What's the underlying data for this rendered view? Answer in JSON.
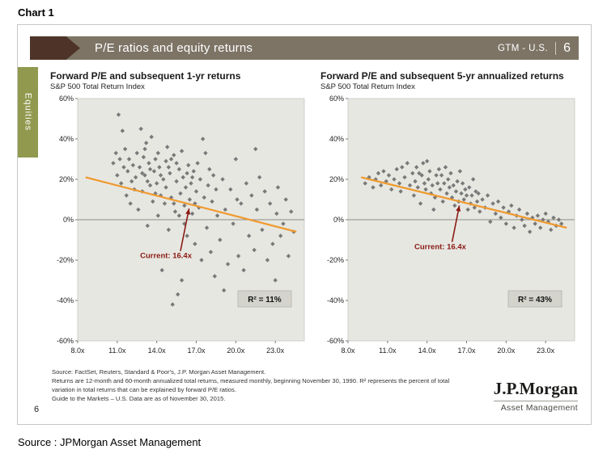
{
  "page": {
    "chart_label": "Chart 1",
    "bottom_source": "Source : JPMorgan Asset Management"
  },
  "slide": {
    "header": {
      "title": "P/E ratios and equity returns",
      "gtm_label": "GTM - U.S.",
      "page_number": "6"
    },
    "section_tab": "Equities",
    "footer": {
      "source_lines": [
        "Source: FactSet, Reuters, Standard & Poor's, J.P. Morgan Asset Management.",
        "Returns are 12-month and 60-month annualized total returns, measured monthly, beginning November 30, 1990. R² represents the percent of total",
        "variation in total returns that can be explained by forward P/E ratios.",
        "Guide to the Markets – U.S. Data are as of November 30, 2015."
      ],
      "page_number": "6",
      "logo_primary": "J.P.Morgan",
      "logo_secondary": "Asset Management"
    }
  },
  "colors": {
    "header_bar": "#7d7466",
    "header_arrow": "#4e3428",
    "tab_green": "#90994e",
    "plot_bg": "#e7e7e2",
    "plot_border": "#c8c8c2",
    "point_gray": "#707070",
    "trend_orange": "#ef9a2f",
    "current_red": "#8a1a12",
    "r2_bg": "#d4d4cd"
  },
  "chart_data": [
    {
      "type": "scatter",
      "title": "Forward P/E and subsequent 1-yr returns",
      "subtitle": "S&P 500 Total Return Index",
      "marker": "diamond",
      "xlim": [
        8,
        25.2
      ],
      "ylim": [
        -60,
        60
      ],
      "xtick_values": [
        8,
        11,
        14,
        17,
        20,
        23
      ],
      "xtick_labels": [
        "8.0x",
        "11.0x",
        "14.0x",
        "17.0x",
        "20.0x",
        "23.0x"
      ],
      "ytick_values": [
        60,
        40,
        20,
        0,
        -20,
        -40,
        -60
      ],
      "ytick_labels": [
        "60%",
        "40%",
        "20%",
        "0%",
        "-20%",
        "-40%",
        "-60%"
      ],
      "r_squared_label": "R² = 11%",
      "trendline": {
        "x1": 8.6,
        "y1": 21,
        "x2": 24.6,
        "y2": -6
      },
      "current": {
        "label": "Current: 16.4x",
        "text_x": 14.7,
        "text_y": -19,
        "arrow_from": [
          15.8,
          -15.5
        ],
        "arrow_to": [
          16.45,
          5.5
        ]
      },
      "points": [
        [
          10.7,
          28
        ],
        [
          10.9,
          33
        ],
        [
          11.0,
          22
        ],
        [
          11.1,
          52
        ],
        [
          11.2,
          30
        ],
        [
          11.3,
          18
        ],
        [
          11.4,
          44
        ],
        [
          11.5,
          26
        ],
        [
          11.6,
          35
        ],
        [
          11.7,
          12
        ],
        [
          11.8,
          24
        ],
        [
          11.9,
          30
        ],
        [
          12.0,
          8
        ],
        [
          12.1,
          19
        ],
        [
          12.2,
          27
        ],
        [
          12.3,
          15
        ],
        [
          12.4,
          21
        ],
        [
          12.5,
          33
        ],
        [
          12.6,
          5
        ],
        [
          12.7,
          26
        ],
        [
          12.8,
          45
        ],
        [
          12.9,
          14
        ],
        [
          13.0,
          31
        ],
        [
          13.1,
          22
        ],
        [
          13.2,
          38
        ],
        [
          13.3,
          -3
        ],
        [
          13.4,
          28
        ],
        [
          13.5,
          17
        ],
        [
          13.6,
          41
        ],
        [
          13.7,
          9
        ],
        [
          13.8,
          24
        ],
        [
          13.9,
          30
        ],
        [
          14.0,
          18
        ],
        [
          14.1,
          2
        ],
        [
          14.2,
          26
        ],
        [
          14.3,
          12
        ],
        [
          14.4,
          -25
        ],
        [
          14.5,
          20
        ],
        [
          14.6,
          8
        ],
        [
          14.7,
          29
        ],
        [
          14.8,
          36
        ],
        [
          14.9,
          -5
        ],
        [
          15.0,
          23
        ],
        [
          15.1,
          11
        ],
        [
          15.2,
          -42
        ],
        [
          15.3,
          32
        ],
        [
          15.4,
          4
        ],
        [
          15.5,
          19
        ],
        [
          15.6,
          -37
        ],
        [
          15.7,
          25
        ],
        [
          15.8,
          13
        ],
        [
          15.9,
          -30
        ],
        [
          16.0,
          21
        ],
        [
          16.1,
          7
        ],
        [
          16.2,
          16
        ],
        [
          16.3,
          -8
        ],
        [
          16.4,
          27
        ],
        [
          16.5,
          10
        ],
        [
          16.6,
          18
        ],
        [
          16.7,
          3
        ],
        [
          16.8,
          24
        ],
        [
          16.9,
          -12
        ],
        [
          17.0,
          14
        ],
        [
          17.1,
          28
        ],
        [
          17.2,
          6
        ],
        [
          17.3,
          20
        ],
        [
          17.4,
          -20
        ],
        [
          17.5,
          40
        ],
        [
          17.6,
          11
        ],
        [
          17.7,
          33
        ],
        [
          17.8,
          -4
        ],
        [
          17.9,
          17
        ],
        [
          18.0,
          25
        ],
        [
          18.1,
          -16
        ],
        [
          18.2,
          9
        ],
        [
          18.3,
          22
        ],
        [
          18.4,
          -28
        ],
        [
          18.5,
          15
        ],
        [
          18.6,
          2
        ],
        [
          18.8,
          -10
        ],
        [
          19.0,
          20
        ],
        [
          19.1,
          -35
        ],
        [
          19.2,
          5
        ],
        [
          19.4,
          -22
        ],
        [
          19.6,
          15
        ],
        [
          19.8,
          -2
        ],
        [
          20.0,
          30
        ],
        [
          20.1,
          10
        ],
        [
          20.2,
          -18
        ],
        [
          20.4,
          8
        ],
        [
          20.6,
          -25
        ],
        [
          20.8,
          18
        ],
        [
          21.0,
          -8
        ],
        [
          21.2,
          12
        ],
        [
          21.4,
          -15
        ],
        [
          21.5,
          35
        ],
        [
          21.6,
          5
        ],
        [
          21.8,
          21
        ],
        [
          22.0,
          -5
        ],
        [
          22.2,
          14
        ],
        [
          22.4,
          -20
        ],
        [
          22.6,
          8
        ],
        [
          22.8,
          -12
        ],
        [
          23.0,
          -30
        ],
        [
          23.1,
          3
        ],
        [
          23.2,
          16
        ],
        [
          23.4,
          -8
        ],
        [
          23.6,
          -2
        ],
        [
          23.8,
          10
        ],
        [
          24.0,
          -18
        ],
        [
          24.2,
          4
        ],
        [
          24.4,
          -6
        ],
        [
          13.1,
          35
        ],
        [
          13.5,
          25
        ],
        [
          13.9,
          13
        ],
        [
          14.1,
          33
        ],
        [
          14.3,
          22
        ],
        [
          14.7,
          16
        ],
        [
          15.1,
          30
        ],
        [
          15.3,
          8
        ],
        [
          15.7,
          2
        ],
        [
          15.9,
          34
        ],
        [
          16.1,
          -2
        ],
        [
          16.3,
          23
        ],
        [
          12.9,
          23
        ],
        [
          13.3,
          19
        ],
        [
          14.9,
          26
        ],
        [
          15.5,
          28
        ],
        [
          16.7,
          21
        ],
        [
          16.9,
          8
        ]
      ]
    },
    {
      "type": "scatter",
      "title": "Forward P/E and subsequent 5-yr annualized returns",
      "subtitle": "S&P 500 Total Return Index",
      "marker": "diamond",
      "xlim": [
        8,
        25.2
      ],
      "ylim": [
        -60,
        60
      ],
      "xtick_values": [
        8,
        11,
        14,
        17,
        20,
        23
      ],
      "xtick_labels": [
        "8.0x",
        "11.0x",
        "14.0x",
        "17.0x",
        "20.0x",
        "23.0x"
      ],
      "ytick_values": [
        60,
        40,
        20,
        0,
        -20,
        -40,
        -60
      ],
      "ytick_labels": [
        "60%",
        "40%",
        "20%",
        "0%",
        "-20%",
        "-40%",
        "-60%"
      ],
      "r_squared_label": "R² = 43%",
      "trendline": {
        "x1": 9.0,
        "y1": 21,
        "x2": 24.6,
        "y2": -4
      },
      "current": {
        "label": "Current: 16.4x",
        "text_x": 15.0,
        "text_y": -14.5,
        "arrow_from": [
          15.9,
          -11
        ],
        "arrow_to": [
          16.45,
          7
        ]
      },
      "points": [
        [
          9.3,
          18
        ],
        [
          9.6,
          21
        ],
        [
          9.9,
          16
        ],
        [
          10.1,
          20
        ],
        [
          10.3,
          23
        ],
        [
          10.5,
          17
        ],
        [
          10.7,
          24
        ],
        [
          10.9,
          19
        ],
        [
          11.1,
          22
        ],
        [
          11.3,
          15
        ],
        [
          11.5,
          20
        ],
        [
          11.7,
          25
        ],
        [
          11.9,
          18
        ],
        [
          12.0,
          14
        ],
        [
          12.1,
          26
        ],
        [
          12.3,
          21
        ],
        [
          12.5,
          28
        ],
        [
          12.7,
          17
        ],
        [
          12.9,
          23
        ],
        [
          13.0,
          12
        ],
        [
          13.1,
          19
        ],
        [
          13.2,
          26
        ],
        [
          13.3,
          16
        ],
        [
          13.4,
          23
        ],
        [
          13.5,
          8
        ],
        [
          13.6,
          22
        ],
        [
          13.7,
          28
        ],
        [
          13.8,
          18
        ],
        [
          13.9,
          15
        ],
        [
          14.0,
          29
        ],
        [
          14.1,
          20
        ],
        [
          14.2,
          24
        ],
        [
          14.3,
          13
        ],
        [
          14.4,
          17
        ],
        [
          14.5,
          5
        ],
        [
          14.6,
          11
        ],
        [
          14.7,
          22
        ],
        [
          14.8,
          18
        ],
        [
          14.9,
          25
        ],
        [
          15.0,
          15
        ],
        [
          15.1,
          22
        ],
        [
          15.2,
          9
        ],
        [
          15.3,
          18
        ],
        [
          15.4,
          26
        ],
        [
          15.5,
          13
        ],
        [
          15.6,
          20
        ],
        [
          15.7,
          16
        ],
        [
          15.8,
          23
        ],
        [
          15.9,
          11
        ],
        [
          16.0,
          17
        ],
        [
          16.1,
          7
        ],
        [
          16.2,
          14
        ],
        [
          16.3,
          19
        ],
        [
          16.4,
          9
        ],
        [
          16.5,
          24
        ],
        [
          16.6,
          13
        ],
        [
          16.7,
          18
        ],
        [
          16.8,
          10
        ],
        [
          16.9,
          15
        ],
        [
          17.0,
          12
        ],
        [
          17.1,
          5
        ],
        [
          17.2,
          16
        ],
        [
          17.3,
          8
        ],
        [
          17.4,
          12
        ],
        [
          17.5,
          20
        ],
        [
          17.6,
          6
        ],
        [
          17.7,
          14
        ],
        [
          17.8,
          9
        ],
        [
          17.9,
          13
        ],
        [
          18.0,
          4
        ],
        [
          18.2,
          10
        ],
        [
          18.4,
          6
        ],
        [
          18.6,
          12
        ],
        [
          18.8,
          -1
        ],
        [
          19.0,
          8
        ],
        [
          19.2,
          3
        ],
        [
          19.4,
          9
        ],
        [
          19.6,
          1
        ],
        [
          19.8,
          6
        ],
        [
          20.0,
          -2
        ],
        [
          20.2,
          4
        ],
        [
          20.4,
          7
        ],
        [
          20.6,
          -4
        ],
        [
          20.8,
          2
        ],
        [
          21.0,
          5
        ],
        [
          21.2,
          0
        ],
        [
          21.4,
          -3
        ],
        [
          21.6,
          3
        ],
        [
          21.8,
          -6
        ],
        [
          22.0,
          1
        ],
        [
          22.2,
          -2
        ],
        [
          22.4,
          2
        ],
        [
          22.6,
          -4
        ],
        [
          22.8,
          0
        ],
        [
          23.0,
          3
        ],
        [
          23.2,
          -1
        ],
        [
          23.4,
          -5
        ],
        [
          23.6,
          1
        ],
        [
          23.8,
          -3
        ],
        [
          24.0,
          0
        ],
        [
          24.2,
          -2
        ]
      ]
    }
  ]
}
